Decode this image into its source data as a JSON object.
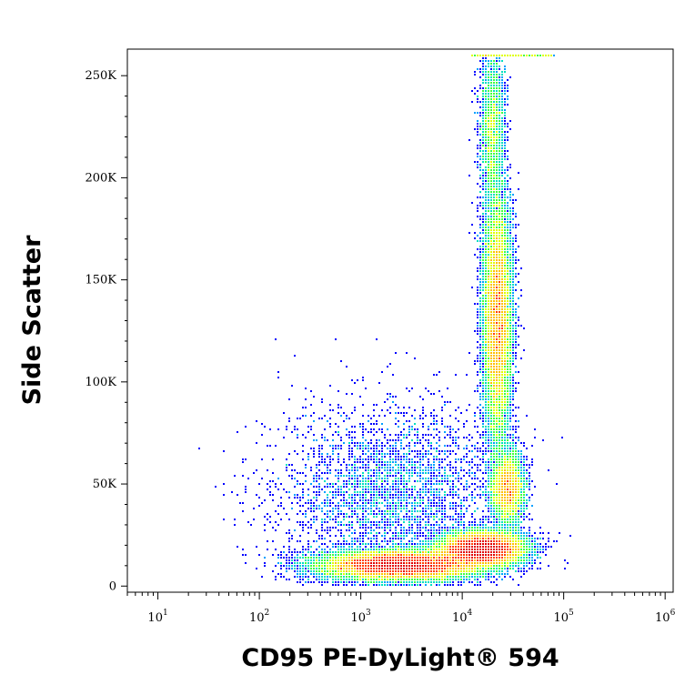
{
  "chart_data": {
    "type": "scatter",
    "subtype": "flow-cytometry-density-dot-plot",
    "xlabel": "CD95 PE-DyLight® 594",
    "ylabel": "Side Scatter",
    "x_scale": "log",
    "xlim": [
      5,
      1200000
    ],
    "ylim": [
      -3000,
      263000
    ],
    "x_ticks": [
      {
        "base": "10",
        "exp": "1",
        "value": 10
      },
      {
        "base": "10",
        "exp": "2",
        "value": 100
      },
      {
        "base": "10",
        "exp": "3",
        "value": 1000
      },
      {
        "base": "10",
        "exp": "4",
        "value": 10000
      },
      {
        "base": "10",
        "exp": "5",
        "value": 100000
      },
      {
        "base": "10",
        "exp": "6",
        "value": 1000000
      }
    ],
    "y_ticks": [
      {
        "label": "0",
        "value": 0
      },
      {
        "label": "50K",
        "value": 50000
      },
      {
        "label": "100K",
        "value": 100000
      },
      {
        "label": "150K",
        "value": 150000
      },
      {
        "label": "200K",
        "value": 200000
      },
      {
        "label": "250K",
        "value": 250000
      }
    ],
    "grid": false,
    "color_scale": [
      "#0000ff",
      "#00a0ff",
      "#00e0c0",
      "#40ff40",
      "#e0ff00",
      "#ffc000",
      "#ff4000",
      "#e00000"
    ],
    "populations": [
      {
        "x_log10_center": 3.4,
        "y_center": 10000,
        "x_log10_sd": 0.38,
        "y_sd": 3500,
        "weight": 0.3
      },
      {
        "x_log10_center": 4.2,
        "y_center": 18000,
        "x_log10_sd": 0.2,
        "y_sd": 4000,
        "weight": 0.22
      },
      {
        "x_log10_center": 4.35,
        "y_center": 130000,
        "x_log10_sd": 0.07,
        "y_sd": 30000,
        "weight": 0.22
      },
      {
        "x_log10_center": 4.45,
        "y_center": 48000,
        "x_log10_sd": 0.08,
        "y_sd": 9000,
        "weight": 0.07
      },
      {
        "x_log10_center": 4.3,
        "y_center": 225000,
        "x_log10_sd": 0.06,
        "y_sd": 20000,
        "weight": 0.04
      },
      {
        "x_log10_center": 3.3,
        "y_center": 45000,
        "x_log10_sd": 0.55,
        "y_sd": 22000,
        "weight": 0.06
      }
    ],
    "saturated_band": {
      "y_value": 260000,
      "x_log10_range": [
        4.1,
        4.9
      ]
    }
  }
}
